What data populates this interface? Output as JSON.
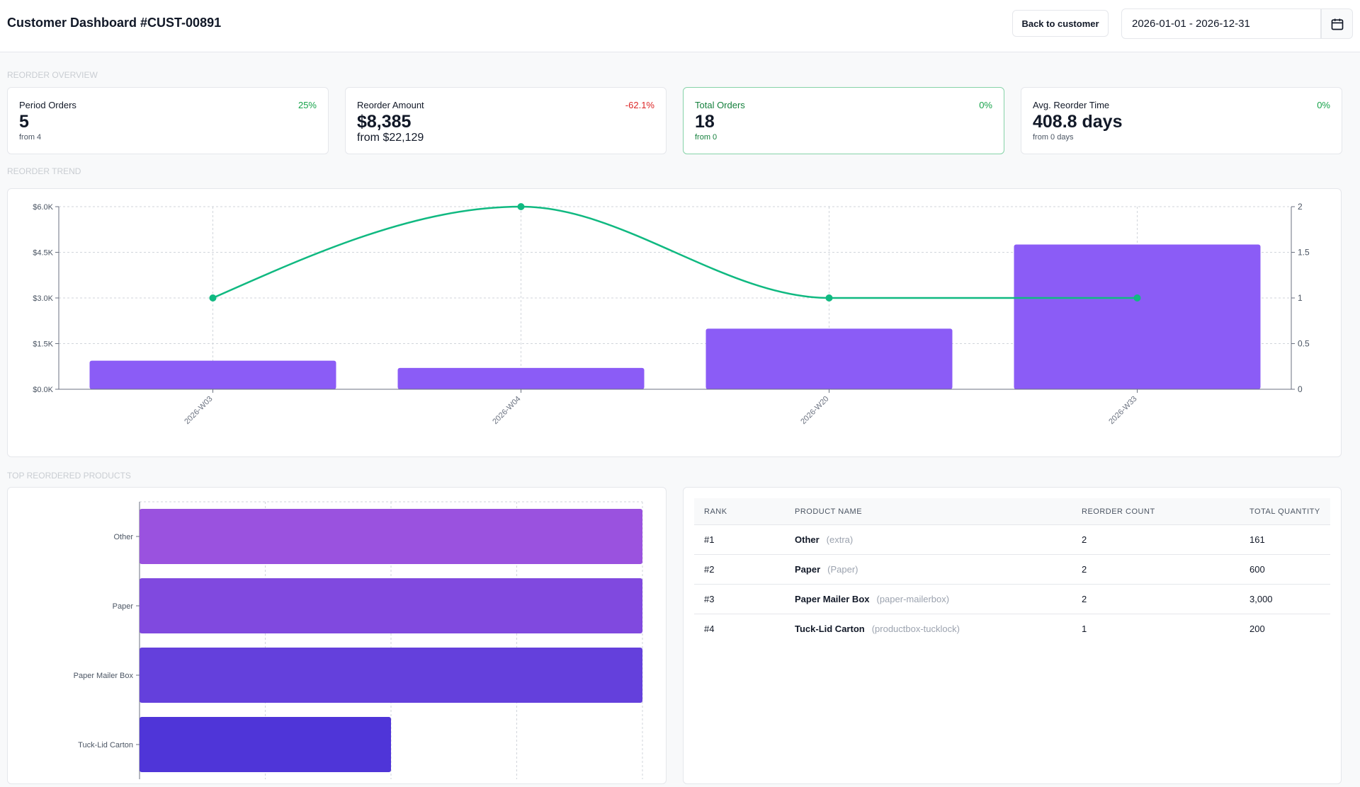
{
  "header": {
    "title": "Customer Dashboard #CUST-00891",
    "back_button": "Back to customer",
    "date_range": "2026-01-01 - 2026-12-31"
  },
  "sections": {
    "overview": "REORDER OVERVIEW",
    "trend": "REORDER TREND",
    "top_products": "TOP REORDERED PRODUCTS"
  },
  "kpis": [
    {
      "label": "Period Orders",
      "change": "25%",
      "change_color": "#16a34a",
      "value": "5",
      "from": "from 4"
    },
    {
      "label": "Reorder Amount",
      "change": "-62.1%",
      "change_color": "#dc2626",
      "value": "$8,385",
      "from": "from $22,129"
    },
    {
      "label": "Total Orders",
      "change": "0%",
      "change_color": "#16a34a",
      "value": "18",
      "from": "from 0",
      "highlighted": true
    },
    {
      "label": "Avg. Reorder Time",
      "change": "0%",
      "change_color": "#16a34a",
      "value": "408.8 days",
      "from": "from 0 days"
    }
  ],
  "chart_data": [
    {
      "type": "bar-line",
      "categories": [
        "2026-W03",
        "2026-W04",
        "2026-W20",
        "2026-W33"
      ],
      "series": [
        {
          "type": "bar",
          "color": "#8b5cf6",
          "values": [
            940,
            700,
            1990,
            4755
          ]
        },
        {
          "type": "line",
          "color": "#10b981",
          "axis": "y2",
          "values": [
            1,
            2,
            1,
            1
          ]
        }
      ],
      "ylim": [
        0,
        6000
      ],
      "yticks": [
        {
          "value": 0,
          "label": "$0.0K"
        },
        {
          "value": 1500,
          "label": "$1.5K"
        },
        {
          "value": 3000,
          "label": "$3.0K"
        },
        {
          "value": 4500,
          "label": "$4.5K"
        },
        {
          "value": 6000,
          "label": "$6.0K"
        }
      ],
      "y2lim": [
        0,
        2
      ],
      "y2ticks": [
        0,
        0.5,
        1,
        1.5,
        2
      ],
      "grid": true
    },
    {
      "type": "hbar",
      "categories": [
        "Other",
        "Paper",
        "Paper Mailer Box",
        "Tuck-Lid Carton"
      ],
      "values": [
        2,
        2,
        2,
        1
      ],
      "colors": [
        "#9a52df",
        "#8049df",
        "#6440dc",
        "#4f35d8"
      ],
      "xlim": [
        0,
        2
      ],
      "xticks": [
        0,
        0.5,
        1,
        1.5,
        2
      ],
      "grid": true
    }
  ],
  "table": {
    "columns": [
      "RANK",
      "PRODUCT NAME",
      "REORDER COUNT",
      "TOTAL QUANTITY"
    ],
    "rows": [
      [
        "#1",
        "Other",
        "(extra)",
        "2",
        "161"
      ],
      [
        "#2",
        "Paper",
        "(Paper)",
        "2",
        "600"
      ],
      [
        "#3",
        "Paper Mailer Box",
        "(paper-mailerbox)",
        "2",
        "3,000"
      ],
      [
        "#4",
        "Tuck-Lid Carton",
        "(productbox-tucklock)",
        "1",
        "200"
      ]
    ]
  }
}
